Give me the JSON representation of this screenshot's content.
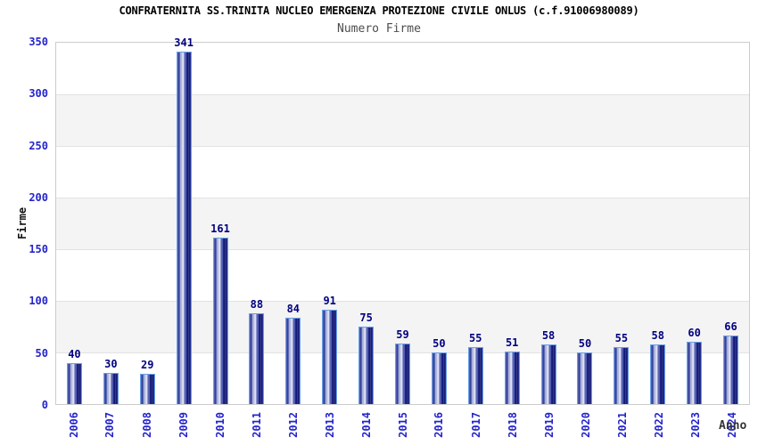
{
  "chart_data": {
    "type": "bar",
    "title": "CONFRATERNITA SS.TRINITA NUCLEO EMERGENZA PROTEZIONE CIVILE ONLUS (c.f.91006980089)",
    "subtitle": "Numero Firme",
    "xlabel": "Anno",
    "ylabel": "Firme",
    "categories": [
      "2006",
      "2007",
      "2008",
      "2009",
      "2010",
      "2011",
      "2012",
      "2013",
      "2014",
      "2015",
      "2016",
      "2017",
      "2018",
      "2019",
      "2020",
      "2021",
      "2022",
      "2023",
      "2024"
    ],
    "values": [
      40,
      30,
      29,
      341,
      161,
      88,
      84,
      91,
      75,
      59,
      50,
      55,
      51,
      58,
      50,
      55,
      58,
      60,
      66
    ],
    "ylim": [
      0,
      350
    ],
    "ytick_step": 50,
    "legend": "none",
    "grid": "horizontal alternating bands with gridlines every 50",
    "bar_value_labels": "shown above each bar",
    "colors": {
      "bar_dark": "#10156f",
      "bar_light": "#f0f3fc",
      "bar_edge": "#68a1e8",
      "tick_label": "#2424cc",
      "value_label": "#000080",
      "band_gray": "#f4f4f4",
      "gridline": "#e2e2e2",
      "plot_border": "#cccccc",
      "title_color": "#000000",
      "subtitle_color": "#4d4d4d",
      "axis_title_color": "#333333"
    }
  }
}
